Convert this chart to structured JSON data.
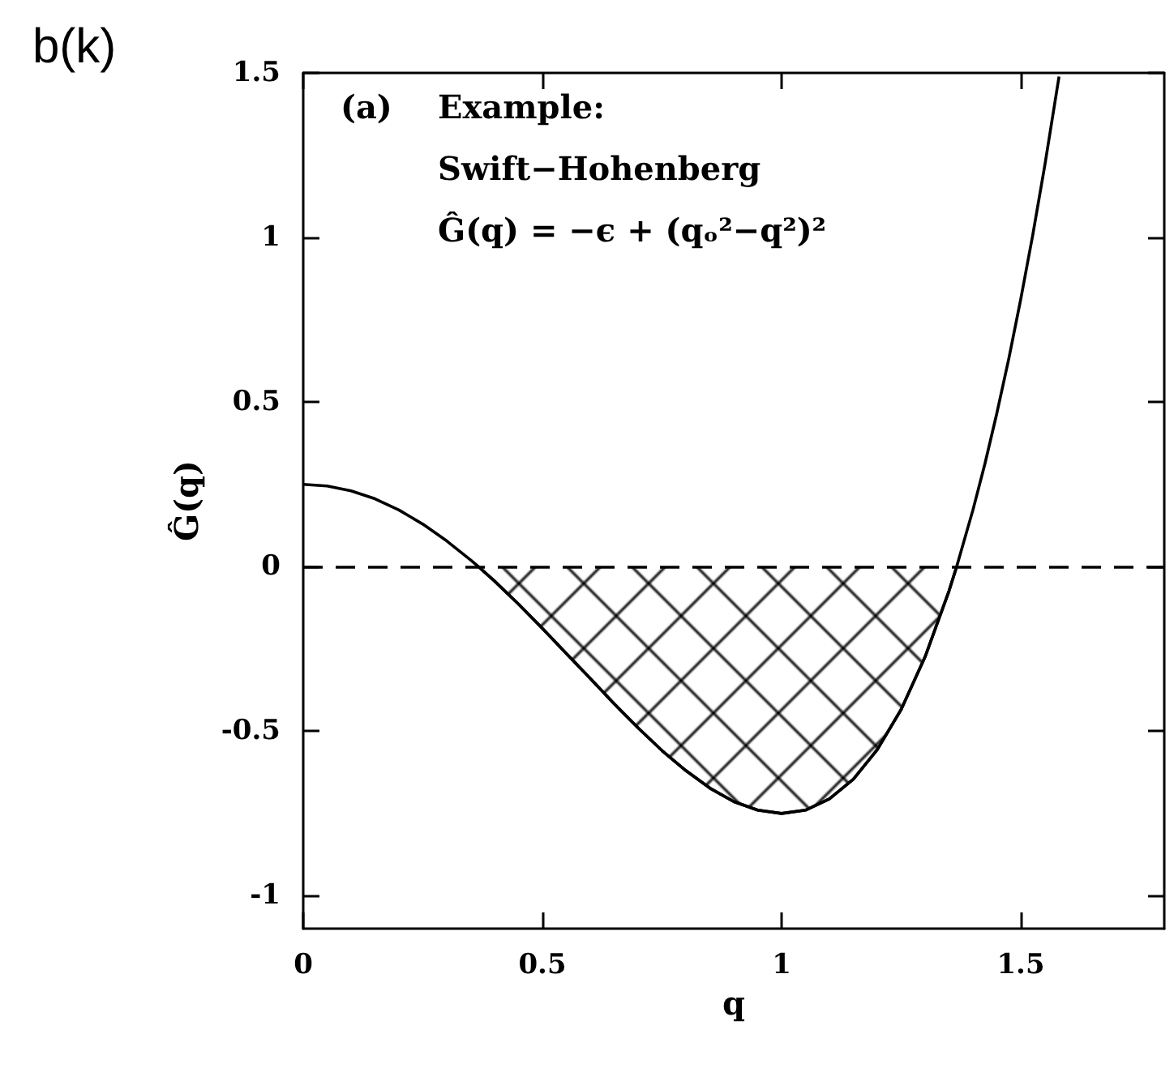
{
  "chart_data": {
    "type": "line",
    "xlabel": "q",
    "ylabel": "Ĝ(q)",
    "annotations": [
      "b(k)",
      "(a)",
      "Example:",
      "Swift−Hohenberg",
      "Ĝ(q) = −ϵ + (qₒ²−q²)²"
    ],
    "xlim": [
      0,
      1.8
    ],
    "xticks": [
      0,
      0.5,
      1,
      1.5
    ],
    "ylim": [
      -1.1,
      1.5
    ],
    "yticks": [
      -1,
      -0.5,
      0,
      0.5,
      1,
      1.5
    ],
    "series": [
      {
        "color": "#000000",
        "x": [
          0,
          0.05,
          0.1,
          0.15,
          0.2,
          0.25,
          0.3,
          0.35,
          0.366,
          0.4,
          0.45,
          0.5,
          0.55,
          0.6,
          0.65,
          0.7,
          0.75,
          0.8,
          0.85,
          0.9,
          0.95,
          1.0,
          1.05,
          1.1,
          1.15,
          1.2,
          1.25,
          1.3,
          1.35,
          1.366,
          1.4,
          1.425,
          1.45,
          1.475,
          1.5,
          1.525,
          1.55,
          1.58
        ],
        "values": [
          0.25,
          0.245,
          0.23,
          0.206,
          0.172,
          0.129,
          0.078,
          0.02,
          0,
          -0.044,
          -0.114,
          -0.188,
          -0.264,
          -0.34,
          -0.417,
          -0.49,
          -0.559,
          -0.62,
          -0.673,
          -0.714,
          -0.74,
          -0.75,
          -0.74,
          -0.706,
          -0.646,
          -0.556,
          -0.434,
          -0.274,
          -0.074,
          0,
          0.172,
          0.312,
          0.466,
          0.632,
          0.813,
          1.007,
          1.217,
          1.489
        ]
      },
      {
        "type": "area",
        "color": "#000000",
        "x": [
          0.366,
          0.4,
          0.45,
          0.5,
          0.55,
          0.6,
          0.65,
          0.7,
          0.75,
          0.8,
          0.85,
          0.9,
          0.95,
          1.0,
          1.05,
          1.1,
          1.15,
          1.2,
          1.25,
          1.3,
          1.35,
          1.366
        ],
        "values": [
          0,
          -0.044,
          -0.114,
          -0.188,
          -0.264,
          -0.34,
          -0.417,
          -0.49,
          -0.559,
          -0.62,
          -0.673,
          -0.714,
          -0.74,
          -0.75,
          -0.74,
          -0.706,
          -0.646,
          -0.556,
          -0.434,
          -0.274,
          -0.074,
          0
        ]
      }
    ],
    "ref_lines": [
      {
        "axis": "y",
        "value": 0,
        "line_style": "dashed",
        "color": "#000000"
      }
    ],
    "grid": false,
    "marker": "none",
    "line_style": "solid"
  }
}
